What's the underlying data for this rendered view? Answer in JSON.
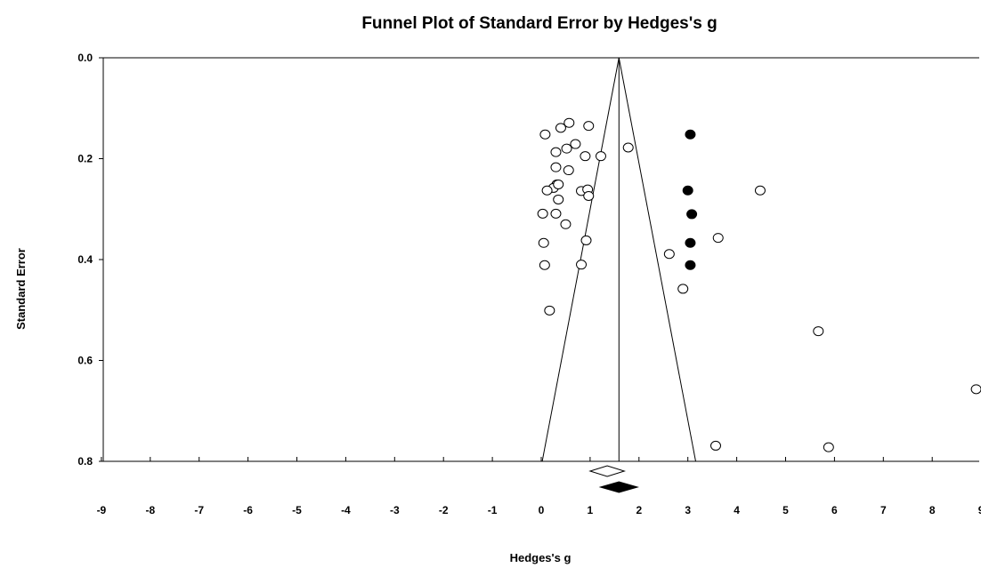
{
  "chart_data": {
    "type": "scatter",
    "title": "Funnel Plot of Standard Error by Hedges's g",
    "xlabel": "Hedges's g",
    "ylabel": "Standard Error",
    "xlim": [
      -9,
      9
    ],
    "ylim": [
      0.0,
      0.8
    ],
    "y_inverted": true,
    "x_ticks": [
      "-9",
      "-8",
      "-7",
      "-6",
      "-5",
      "-4",
      "-3",
      "-2",
      "-1",
      "0",
      "1",
      "2",
      "3",
      "4",
      "5",
      "6",
      "7",
      "8",
      "9"
    ],
    "y_ticks": [
      "0.0",
      "0.2",
      "0.4",
      "0.6",
      "0.8"
    ],
    "grid": false,
    "legend": "none",
    "combined_effect": 1.59,
    "funnel_lines": [
      {
        "from": [
          1.59,
          0.0
        ],
        "to": [
          0.02,
          0.8
        ]
      },
      {
        "from": [
          1.59,
          0.0
        ],
        "to": [
          3.16,
          0.8
        ]
      }
    ],
    "series": [
      {
        "marker": "open-circle",
        "x": [
          0.08,
          0.4,
          0.57,
          0.97,
          0.3,
          0.52,
          0.7,
          0.9,
          1.22,
          1.78,
          0.3,
          0.56,
          0.32,
          0.25,
          0.35,
          0.12,
          0.82,
          0.95,
          0.97,
          0.35,
          0.03,
          0.3,
          0.5,
          0.05,
          0.92,
          0.07,
          0.82,
          0.17,
          2.62,
          2.9,
          4.48,
          3.62,
          5.67,
          3.57,
          5.88,
          8.9
        ],
        "y": [
          0.152,
          0.139,
          0.129,
          0.135,
          0.187,
          0.18,
          0.171,
          0.195,
          0.195,
          0.178,
          0.217,
          0.223,
          0.251,
          0.258,
          0.281,
          0.263,
          0.264,
          0.261,
          0.274,
          0.251,
          0.309,
          0.309,
          0.33,
          0.367,
          0.362,
          0.411,
          0.41,
          0.501,
          0.389,
          0.458,
          0.263,
          0.357,
          0.542,
          0.769,
          0.772,
          0.657
        ]
      },
      {
        "marker": "filled-circle",
        "x": [
          3.05,
          3.0,
          3.08,
          3.05,
          3.05
        ],
        "y": [
          0.152,
          0.263,
          0.31,
          0.367,
          0.411
        ]
      }
    ],
    "summary_diamonds": [
      {
        "style": "open",
        "x": 1.35,
        "half_width": 0.35
      },
      {
        "style": "filled",
        "x": 1.59,
        "half_width": 0.38
      }
    ]
  }
}
